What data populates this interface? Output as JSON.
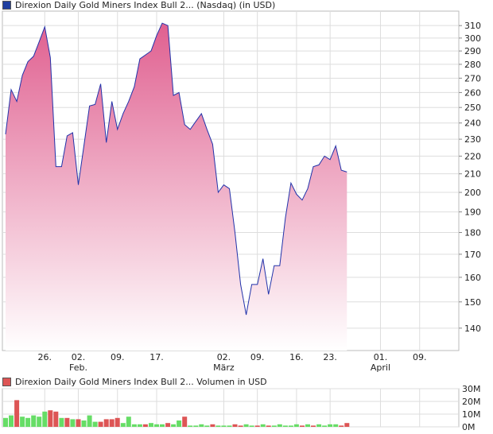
{
  "chart_data": [
    {
      "type": "area",
      "legend": {
        "label": "Direxion Daily Gold Miners Index Bull 2... (Nasdaq) (in USD)",
        "color": "#1f3fa0"
      },
      "line_color": "#2233aa",
      "fill_top_color": "#e06090",
      "fill_bottom_color": "#ffffff",
      "y_scale": "log",
      "ylim": [
        132,
        322
      ],
      "yticks": [
        140,
        150,
        160,
        170,
        180,
        190,
        200,
        210,
        220,
        230,
        240,
        250,
        260,
        270,
        280,
        290,
        300,
        310
      ],
      "xlim": [
        0,
        81
      ],
      "x_tick_labels": [
        {
          "label": "26.",
          "month": "",
          "x": 7
        },
        {
          "label": "02.",
          "month": "Feb.",
          "x": 13
        },
        {
          "label": "09.",
          "month": "",
          "x": 20
        },
        {
          "label": "17.",
          "month": "",
          "x": 27
        },
        {
          "label": "02.",
          "month": "März",
          "x": 39
        },
        {
          "label": "09.",
          "month": "",
          "x": 45
        },
        {
          "label": "16.",
          "month": "",
          "x": 52
        },
        {
          "label": "23.",
          "month": "",
          "x": 58
        },
        {
          "label": "01.",
          "month": "April",
          "x": 67
        },
        {
          "label": "09.",
          "month": "",
          "x": 74
        }
      ],
      "points": [
        [
          0,
          233
        ],
        [
          1,
          262
        ],
        [
          2,
          254
        ],
        [
          3,
          272
        ],
        [
          4,
          282
        ],
        [
          5,
          286
        ],
        [
          6,
          297
        ],
        [
          7,
          309
        ],
        [
          8,
          285
        ],
        [
          9,
          214
        ],
        [
          10,
          214
        ],
        [
          11,
          232
        ],
        [
          12,
          234
        ],
        [
          13,
          204
        ],
        [
          14,
          226
        ],
        [
          15,
          251
        ],
        [
          16,
          252
        ],
        [
          17,
          266
        ],
        [
          18,
          228
        ],
        [
          19,
          254
        ],
        [
          20,
          236
        ],
        [
          21,
          246
        ],
        [
          22,
          254
        ],
        [
          23,
          264
        ],
        [
          24,
          284
        ],
        [
          25,
          287
        ],
        [
          26,
          290
        ],
        [
          27,
          302
        ],
        [
          28,
          312
        ],
        [
          29,
          310
        ],
        [
          30,
          258
        ],
        [
          31,
          260
        ],
        [
          32,
          239
        ],
        [
          33,
          236
        ],
        [
          34,
          241
        ],
        [
          35,
          246
        ],
        [
          36,
          236
        ],
        [
          37,
          227
        ],
        [
          38,
          200
        ],
        [
          39,
          204
        ],
        [
          40,
          202
        ],
        [
          41,
          180
        ],
        [
          42,
          157
        ],
        [
          43,
          145
        ],
        [
          44,
          157
        ],
        [
          45,
          157
        ],
        [
          46,
          168
        ],
        [
          47,
          153
        ],
        [
          48,
          165
        ],
        [
          49,
          165
        ],
        [
          50,
          187
        ],
        [
          51,
          205
        ],
        [
          52,
          199
        ],
        [
          53,
          196
        ],
        [
          54,
          202
        ],
        [
          55,
          214
        ],
        [
          56,
          215
        ],
        [
          57,
          220
        ],
        [
          58,
          218
        ],
        [
          59,
          226
        ],
        [
          60,
          212
        ],
        [
          61,
          211
        ]
      ]
    },
    {
      "type": "bar",
      "legend": {
        "label": "Direxion Daily Gold Miners Index Bull 2... Volumen in USD",
        "color": "#dd5555"
      },
      "ylim": [
        0,
        30
      ],
      "yticks": [
        {
          "label": "30M",
          "value": 30
        },
        {
          "label": "20M",
          "value": 20
        },
        {
          "label": "10M",
          "value": 10
        },
        {
          "label": "0M",
          "value": 0
        }
      ],
      "up_color": "#66dd66",
      "down_color": "#dd5555",
      "bars": [
        [
          7,
          "up"
        ],
        [
          9,
          "up"
        ],
        [
          21,
          "down"
        ],
        [
          8,
          "up"
        ],
        [
          7,
          "up"
        ],
        [
          9,
          "up"
        ],
        [
          8,
          "up"
        ],
        [
          12,
          "up"
        ],
        [
          13,
          "down"
        ],
        [
          12,
          "down"
        ],
        [
          7,
          "up"
        ],
        [
          7,
          "down"
        ],
        [
          6,
          "up"
        ],
        [
          6,
          "down"
        ],
        [
          5,
          "up"
        ],
        [
          9,
          "up"
        ],
        [
          4,
          "up"
        ],
        [
          4,
          "down"
        ],
        [
          6,
          "down"
        ],
        [
          6,
          "down"
        ],
        [
          7,
          "down"
        ],
        [
          3,
          "up"
        ],
        [
          8,
          "up"
        ],
        [
          2,
          "up"
        ],
        [
          2,
          "up"
        ],
        [
          2,
          "down"
        ],
        [
          3,
          "up"
        ],
        [
          2,
          "up"
        ],
        [
          2,
          "up"
        ],
        [
          3,
          "down"
        ],
        [
          2,
          "up"
        ],
        [
          5,
          "up"
        ],
        [
          8,
          "down"
        ],
        [
          1,
          "up"
        ],
        [
          1,
          "up"
        ],
        [
          2,
          "up"
        ],
        [
          1,
          "up"
        ],
        [
          2,
          "down"
        ],
        [
          1,
          "up"
        ],
        [
          1,
          "up"
        ],
        [
          1,
          "up"
        ],
        [
          2,
          "down"
        ],
        [
          1,
          "down"
        ],
        [
          2,
          "up"
        ],
        [
          1,
          "up"
        ],
        [
          1,
          "down"
        ],
        [
          2,
          "up"
        ],
        [
          1,
          "down"
        ],
        [
          1,
          "up"
        ],
        [
          2,
          "up"
        ],
        [
          1,
          "up"
        ],
        [
          1,
          "up"
        ],
        [
          2,
          "up"
        ],
        [
          1,
          "down"
        ],
        [
          2,
          "up"
        ],
        [
          1,
          "down"
        ],
        [
          2,
          "up"
        ],
        [
          1,
          "up"
        ],
        [
          2,
          "up"
        ],
        [
          2,
          "up"
        ],
        [
          1,
          "down"
        ],
        [
          3,
          "down"
        ]
      ]
    }
  ]
}
